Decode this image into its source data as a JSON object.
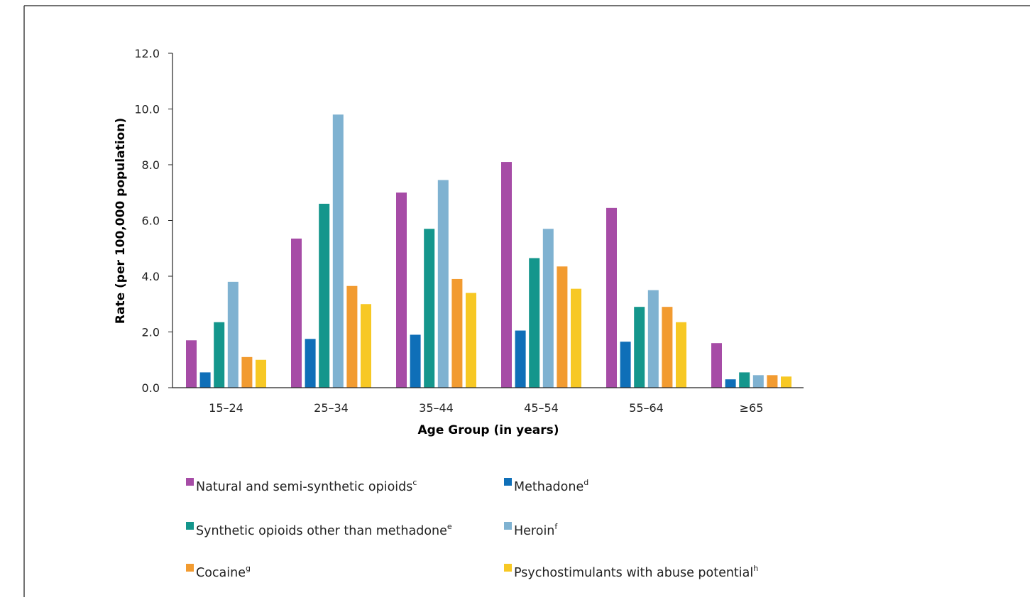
{
  "chart_data": {
    "type": "bar",
    "title": "",
    "xlabel": "Age Group (in years)",
    "ylabel": "Rate (per 100,000 population)",
    "ylim": [
      0,
      12
    ],
    "yticks": [
      "0.0",
      "2.0",
      "4.0",
      "6.0",
      "8.0",
      "10.0",
      "12.0"
    ],
    "grid": false,
    "legend_position": "bottom",
    "categories": [
      "15–24",
      "25–34",
      "35–44",
      "45–54",
      "55–64",
      "≥65"
    ],
    "series": [
      {
        "name": "Natural and semi-synthetic opioids",
        "sup": "c",
        "color": "#a64ca6",
        "values": [
          1.7,
          5.35,
          7.0,
          8.1,
          6.45,
          1.6
        ]
      },
      {
        "name": "Methadone",
        "sup": "d",
        "color": "#0f6fb8",
        "values": [
          0.55,
          1.75,
          1.9,
          2.05,
          1.65,
          0.3
        ]
      },
      {
        "name": "Synthetic opioids other than methadone",
        "sup": "e",
        "color": "#14968c",
        "values": [
          2.35,
          6.6,
          5.7,
          4.65,
          2.9,
          0.55
        ]
      },
      {
        "name": "Heroin",
        "sup": "f",
        "color": "#7fb2d1",
        "values": [
          3.8,
          9.8,
          7.45,
          5.7,
          3.5,
          0.45
        ]
      },
      {
        "name": "Cocaine",
        "sup": "g",
        "color": "#f29b30",
        "values": [
          1.1,
          3.65,
          3.9,
          4.35,
          2.9,
          0.45
        ]
      },
      {
        "name": "Psychostimulants with abuse potential",
        "sup": "h",
        "color": "#f7c824",
        "values": [
          1.0,
          3.0,
          3.4,
          3.55,
          2.35,
          0.4
        ]
      }
    ]
  }
}
